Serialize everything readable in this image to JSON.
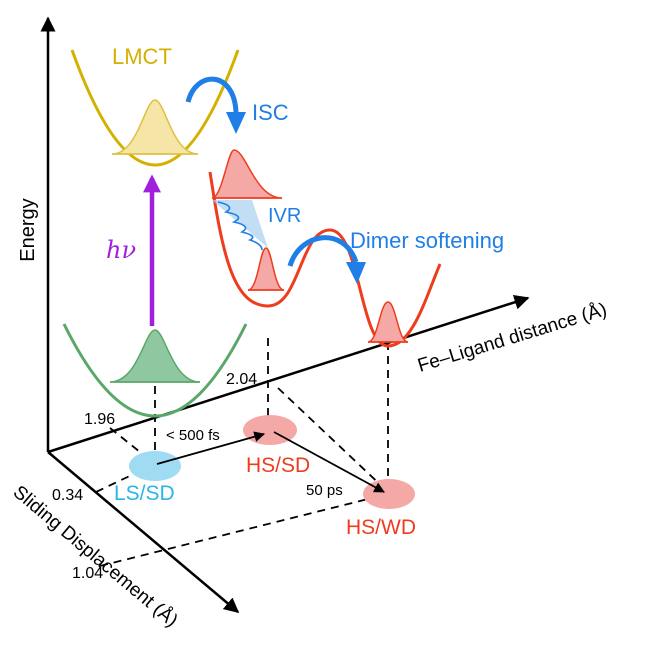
{
  "labels": {
    "energy": "Energy",
    "fe_ligand_axis": "Fe–Ligand distance (Å)",
    "sliding_axis": "Sliding Displacement (Å)",
    "lmct": "LMCT",
    "isc": "ISC",
    "ivr": "IVR",
    "dimer_softening": "Dimer softening",
    "hv": "hν",
    "ls_sd": "LS/SD",
    "hs_sd": "HS/SD",
    "hs_wd": "HS/WD",
    "t1": "< 500 fs",
    "t2": "50 ps"
  },
  "ticks": {
    "x1": "1.96",
    "x2": "2.04",
    "z1": "0.34",
    "z2": "1.04"
  },
  "colors": {
    "lmct": "#d4b000",
    "hs": "#ee3d1e",
    "ls": "#5aa868",
    "blue": "#1f7fe6",
    "purple": "#a020e0",
    "ls_spot": "#9fdcf4",
    "hs_spot": "#f5a9a6",
    "ls_text": "#2ab5e6"
  }
}
